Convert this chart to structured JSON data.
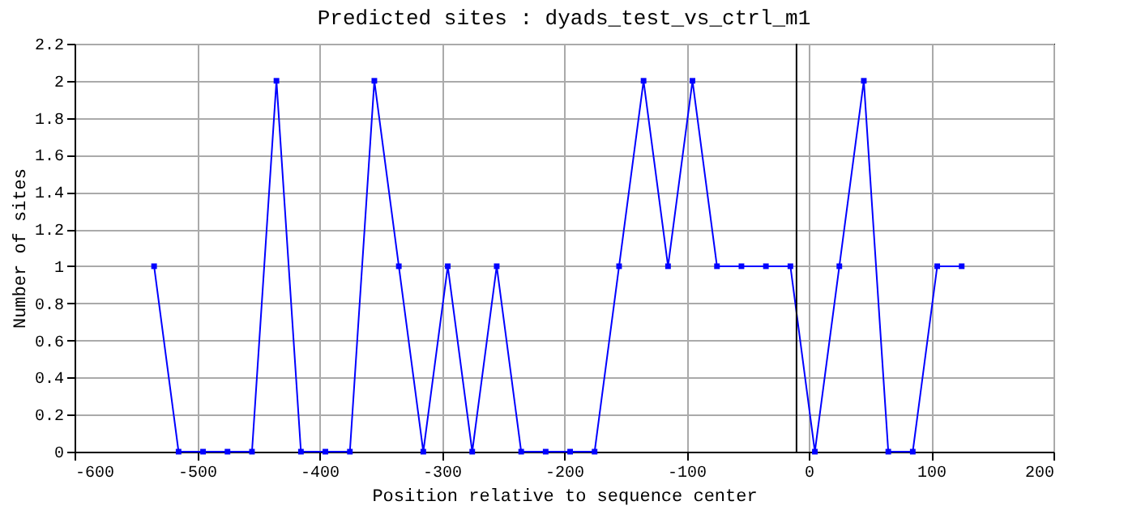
{
  "chart_data": {
    "type": "line",
    "title": "Predicted sites : dyads_test_vs_ctrl_m1",
    "xlabel": "Position relative to sequence center",
    "ylabel": "Number of sites",
    "x": [
      -535,
      -515,
      -495,
      -475,
      -455,
      -435,
      -415,
      -395,
      -375,
      -355,
      -335,
      -315,
      -295,
      -275,
      -255,
      -235,
      -215,
      -195,
      -175,
      -155,
      -135,
      -115,
      -95,
      -75,
      -55,
      -35,
      -15,
      5,
      25,
      45,
      65,
      85,
      105,
      125
    ],
    "series": [
      {
        "color": "#0000ff",
        "values": [
          1,
          0,
          0,
          0,
          0,
          2,
          0,
          0,
          0,
          2,
          1,
          0,
          1,
          0,
          1,
          0,
          0,
          0,
          0,
          1,
          2,
          1,
          2,
          1,
          1,
          1,
          1,
          0,
          1,
          2,
          0,
          0,
          1,
          1
        ]
      }
    ],
    "xlim": [
      -600,
      200
    ],
    "xticks": [
      -600,
      -500,
      -400,
      -300,
      -200,
      -100,
      0,
      100,
      200
    ],
    "ylim": [
      0,
      2.2
    ],
    "yticks": [
      0,
      0.2,
      0.4,
      0.6,
      0.8,
      1,
      1.2,
      1.4,
      1.6,
      1.8,
      2,
      2.2
    ],
    "grid": true,
    "marker": "square",
    "line_style": "solid",
    "ref_lines": [
      {
        "axis": "x",
        "value": -10,
        "color": "#000000"
      }
    ]
  }
}
